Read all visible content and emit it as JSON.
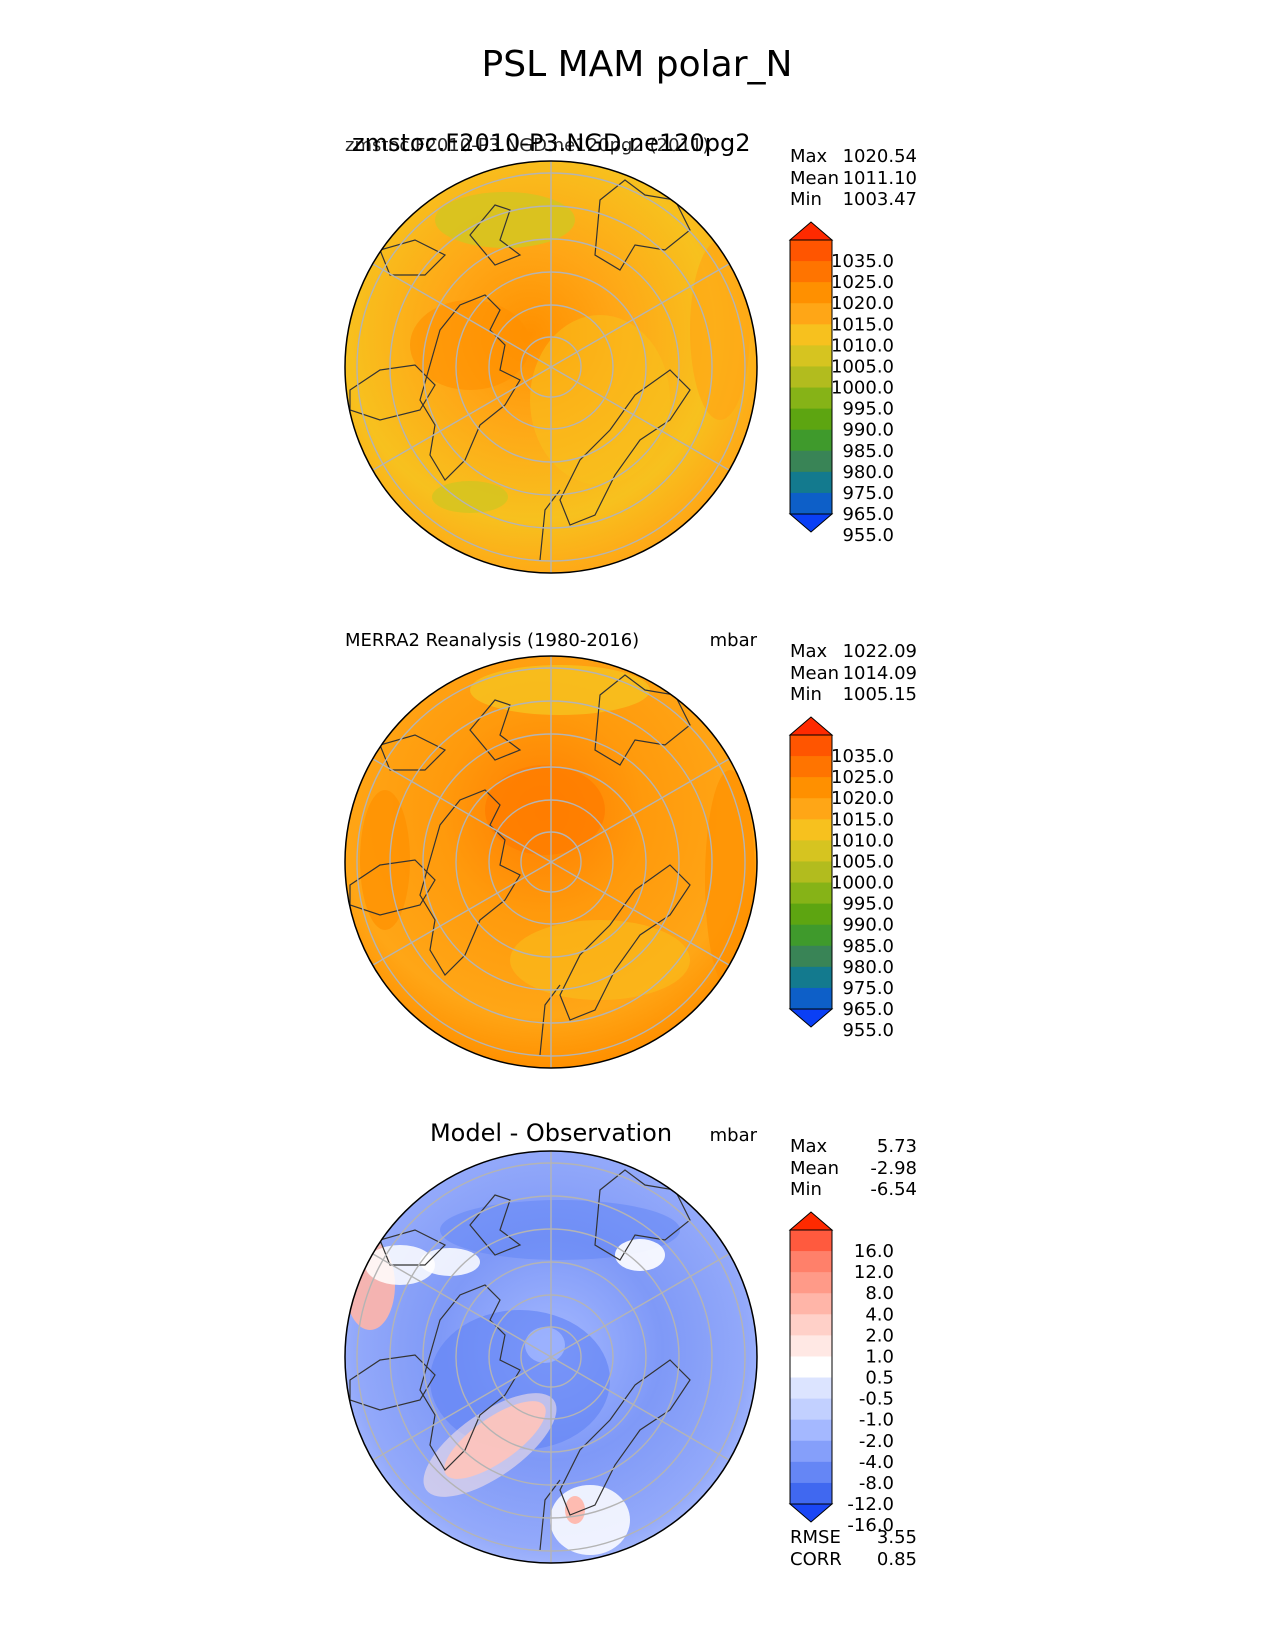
{
  "title": "PSL MAM polar_N",
  "chart_data": [
    {
      "type": "heatmap",
      "projection": "north-polar-stereographic",
      "title_left": "zmstoc.F2010-P3.NGD.ne120pg2",
      "title_left_overlap": "zmstoc.F2010-P3.NGD.ne120pg2 (2011)",
      "units": "",
      "stats": {
        "max_label": "Max",
        "max": "1020.54",
        "mean_label": "Mean",
        "mean": "1011.10",
        "min_label": "Min",
        "min": "1003.47"
      },
      "colorbar_levels": [
        "1035.0",
        "1025.0",
        "1020.0",
        "1015.0",
        "1010.0",
        "1005.0",
        "1000.0",
        "995.0",
        "990.0",
        "985.0",
        "980.0",
        "975.0",
        "965.0",
        "955.0"
      ],
      "colorbar_colors": [
        "#ff2a00",
        "#ff5500",
        "#ff7400",
        "#ff9000",
        "#ffa616",
        "#f7c11e",
        "#d6c420",
        "#b2bc1e",
        "#86b317",
        "#5da511",
        "#3f9a2c",
        "#398456",
        "#137a8e",
        "#0d5fc8",
        "#0a3ff5"
      ]
    },
    {
      "type": "heatmap",
      "projection": "north-polar-stereographic",
      "title_left": "MERRA2 Reanalysis (1980-2016)",
      "units": "mbar",
      "stats": {
        "max_label": "Max",
        "max": "1022.09",
        "mean_label": "Mean",
        "mean": "1014.09",
        "min_label": "Min",
        "min": "1005.15"
      },
      "colorbar_levels": [
        "1035.0",
        "1025.0",
        "1020.0",
        "1015.0",
        "1010.0",
        "1005.0",
        "1000.0",
        "995.0",
        "990.0",
        "985.0",
        "980.0",
        "975.0",
        "965.0",
        "955.0"
      ],
      "colorbar_colors": [
        "#ff2a00",
        "#ff5500",
        "#ff7400",
        "#ff9000",
        "#ffa616",
        "#f7c11e",
        "#d6c420",
        "#b2bc1e",
        "#86b317",
        "#5da511",
        "#3f9a2c",
        "#398456",
        "#137a8e",
        "#0d5fc8",
        "#0a3ff5"
      ]
    },
    {
      "type": "heatmap",
      "projection": "north-polar-stereographic",
      "title_center": "Model - Observation",
      "units": "mbar",
      "stats": {
        "max_label": "Max",
        "max": "5.73",
        "mean_label": "Mean",
        "mean": "-2.98",
        "min_label": "Min",
        "min": "-6.54"
      },
      "colorbar_levels": [
        "16.0",
        "12.0",
        "8.0",
        "4.0",
        "2.0",
        "1.0",
        "0.5",
        "-0.5",
        "-1.0",
        "-2.0",
        "-4.0",
        "-8.0",
        "-12.0",
        "-16.0"
      ],
      "colorbar_colors": [
        "#ff2a00",
        "#ff5a3e",
        "#ff806a",
        "#ff9a88",
        "#ffb5a8",
        "#ffd0c8",
        "#ffe8e4",
        "#ffffff",
        "#dce4ff",
        "#c2d0ff",
        "#a4b8ff",
        "#859ffa",
        "#6586f5",
        "#4068f0",
        "#1a46f5"
      ],
      "rmse_label": "RMSE",
      "rmse": "3.55",
      "corr_label": "CORR",
      "corr": "0.85"
    }
  ]
}
